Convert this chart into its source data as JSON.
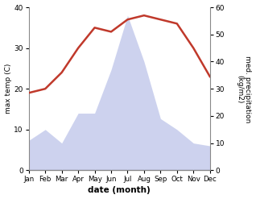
{
  "months": [
    "Jan",
    "Feb",
    "Mar",
    "Apr",
    "May",
    "Jun",
    "Jul",
    "Aug",
    "Sep",
    "Oct",
    "Nov",
    "Dec"
  ],
  "temp": [
    19,
    20,
    24,
    30,
    35,
    34,
    37,
    38,
    37,
    36,
    30,
    23
  ],
  "precip": [
    11,
    15,
    10,
    21,
    21,
    37,
    57,
    40,
    19,
    15,
    10,
    9
  ],
  "temp_color": "#c0392b",
  "precip_fill_color": "#b8c0e8",
  "ylim_temp": [
    0,
    40
  ],
  "ylim_precip": [
    0,
    60
  ],
  "xlabel": "date (month)",
  "ylabel_left": "max temp (C)",
  "ylabel_right": "med. precipitation\n(kg/m2)",
  "yticks_temp": [
    0,
    10,
    20,
    30,
    40
  ],
  "yticks_precip": [
    0,
    10,
    20,
    30,
    40,
    50,
    60
  ]
}
